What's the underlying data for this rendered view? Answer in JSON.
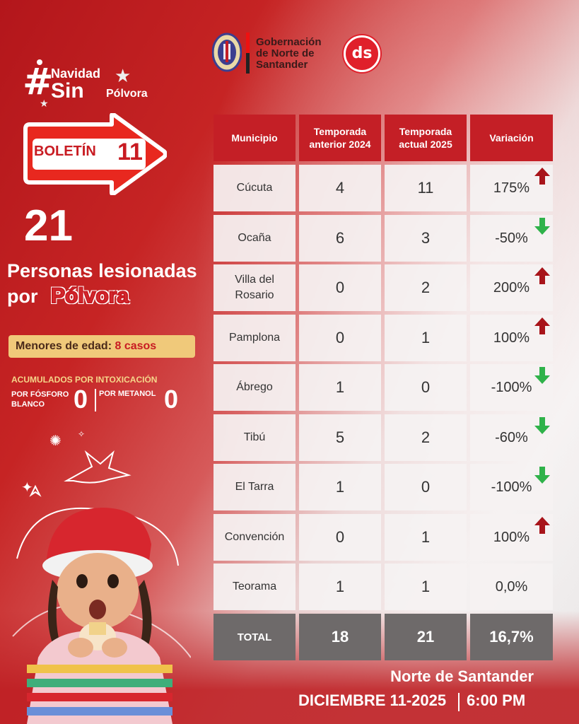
{
  "header": {
    "gov_line1": "Gobernación",
    "gov_line2": "de Norte de",
    "gov_line3": "Santander",
    "ds_logo_text": "ds"
  },
  "hashtag": {
    "symbol": "#",
    "word1": "Navidad",
    "word2": "Sin",
    "word3": "Pólvora"
  },
  "bulletin": {
    "label": "BOLETÍN",
    "number": "11"
  },
  "injured": {
    "count": "21",
    "line1": "Personas lesionadas",
    "line2a": "por",
    "line2b": "Pólvora"
  },
  "minors": {
    "label": "Menores de edad:",
    "value": "8 casos"
  },
  "intoxication": {
    "title": "ACUMULADOS POR INTOXICACIÓN",
    "phosphorus_label_1": "POR FÓSFORO",
    "phosphorus_label_2": "BLANCO",
    "phosphorus_value": "0",
    "methanol_label": "POR METANOL",
    "methanol_value": "0"
  },
  "table": {
    "headers": [
      "Municipio",
      "Temporada anterior 2024",
      "Temporada actual 2025",
      "Variación"
    ],
    "header_lines": [
      [
        "Municipio"
      ],
      [
        "Temporada",
        "anterior 2024"
      ],
      [
        "Temporada",
        "actual 2025"
      ],
      [
        "Variación"
      ]
    ],
    "rows": [
      {
        "municipio": "Cúcuta",
        "anterior": "4",
        "actual": "11",
        "variacion": "175%",
        "trend": "up"
      },
      {
        "municipio": "Ocaña",
        "anterior": "6",
        "actual": "3",
        "variacion": "-50%",
        "trend": "down"
      },
      {
        "municipio": "Villa del Rosario",
        "municipio_l1": "Villa del",
        "municipio_l2": "Rosario",
        "anterior": "0",
        "actual": "2",
        "variacion": "200%",
        "trend": "up"
      },
      {
        "municipio": "Pamplona",
        "anterior": "0",
        "actual": "1",
        "variacion": "100%",
        "trend": "up"
      },
      {
        "municipio": "Ábrego",
        "anterior": "1",
        "actual": "0",
        "variacion": "-100%",
        "trend": "down"
      },
      {
        "municipio": "Tibú",
        "anterior": "5",
        "actual": "2",
        "variacion": "-60%",
        "trend": "down"
      },
      {
        "municipio": "El Tarra",
        "anterior": "1",
        "actual": "0",
        "variacion": "-100%",
        "trend": "down"
      },
      {
        "municipio": "Convención",
        "anterior": "0",
        "actual": "1",
        "variacion": "100%",
        "trend": "up"
      },
      {
        "municipio": "Teorama",
        "anterior": "1",
        "actual": "1",
        "variacion": "0,0%",
        "trend": "none"
      }
    ],
    "total": {
      "label": "TOTAL",
      "anterior": "18",
      "actual": "21",
      "variacion": "16,7%"
    }
  },
  "footer": {
    "region": "Norte de Santander",
    "date": "DICIEMBRE 11-2025",
    "time": "6:00 PM"
  },
  "colors": {
    "brand_red": "#c41f26",
    "trend_up": "#a8141a",
    "trend_down": "#2fb24a",
    "total_bg": "#6e6a6a",
    "minors_bg": "#f0c97a"
  }
}
